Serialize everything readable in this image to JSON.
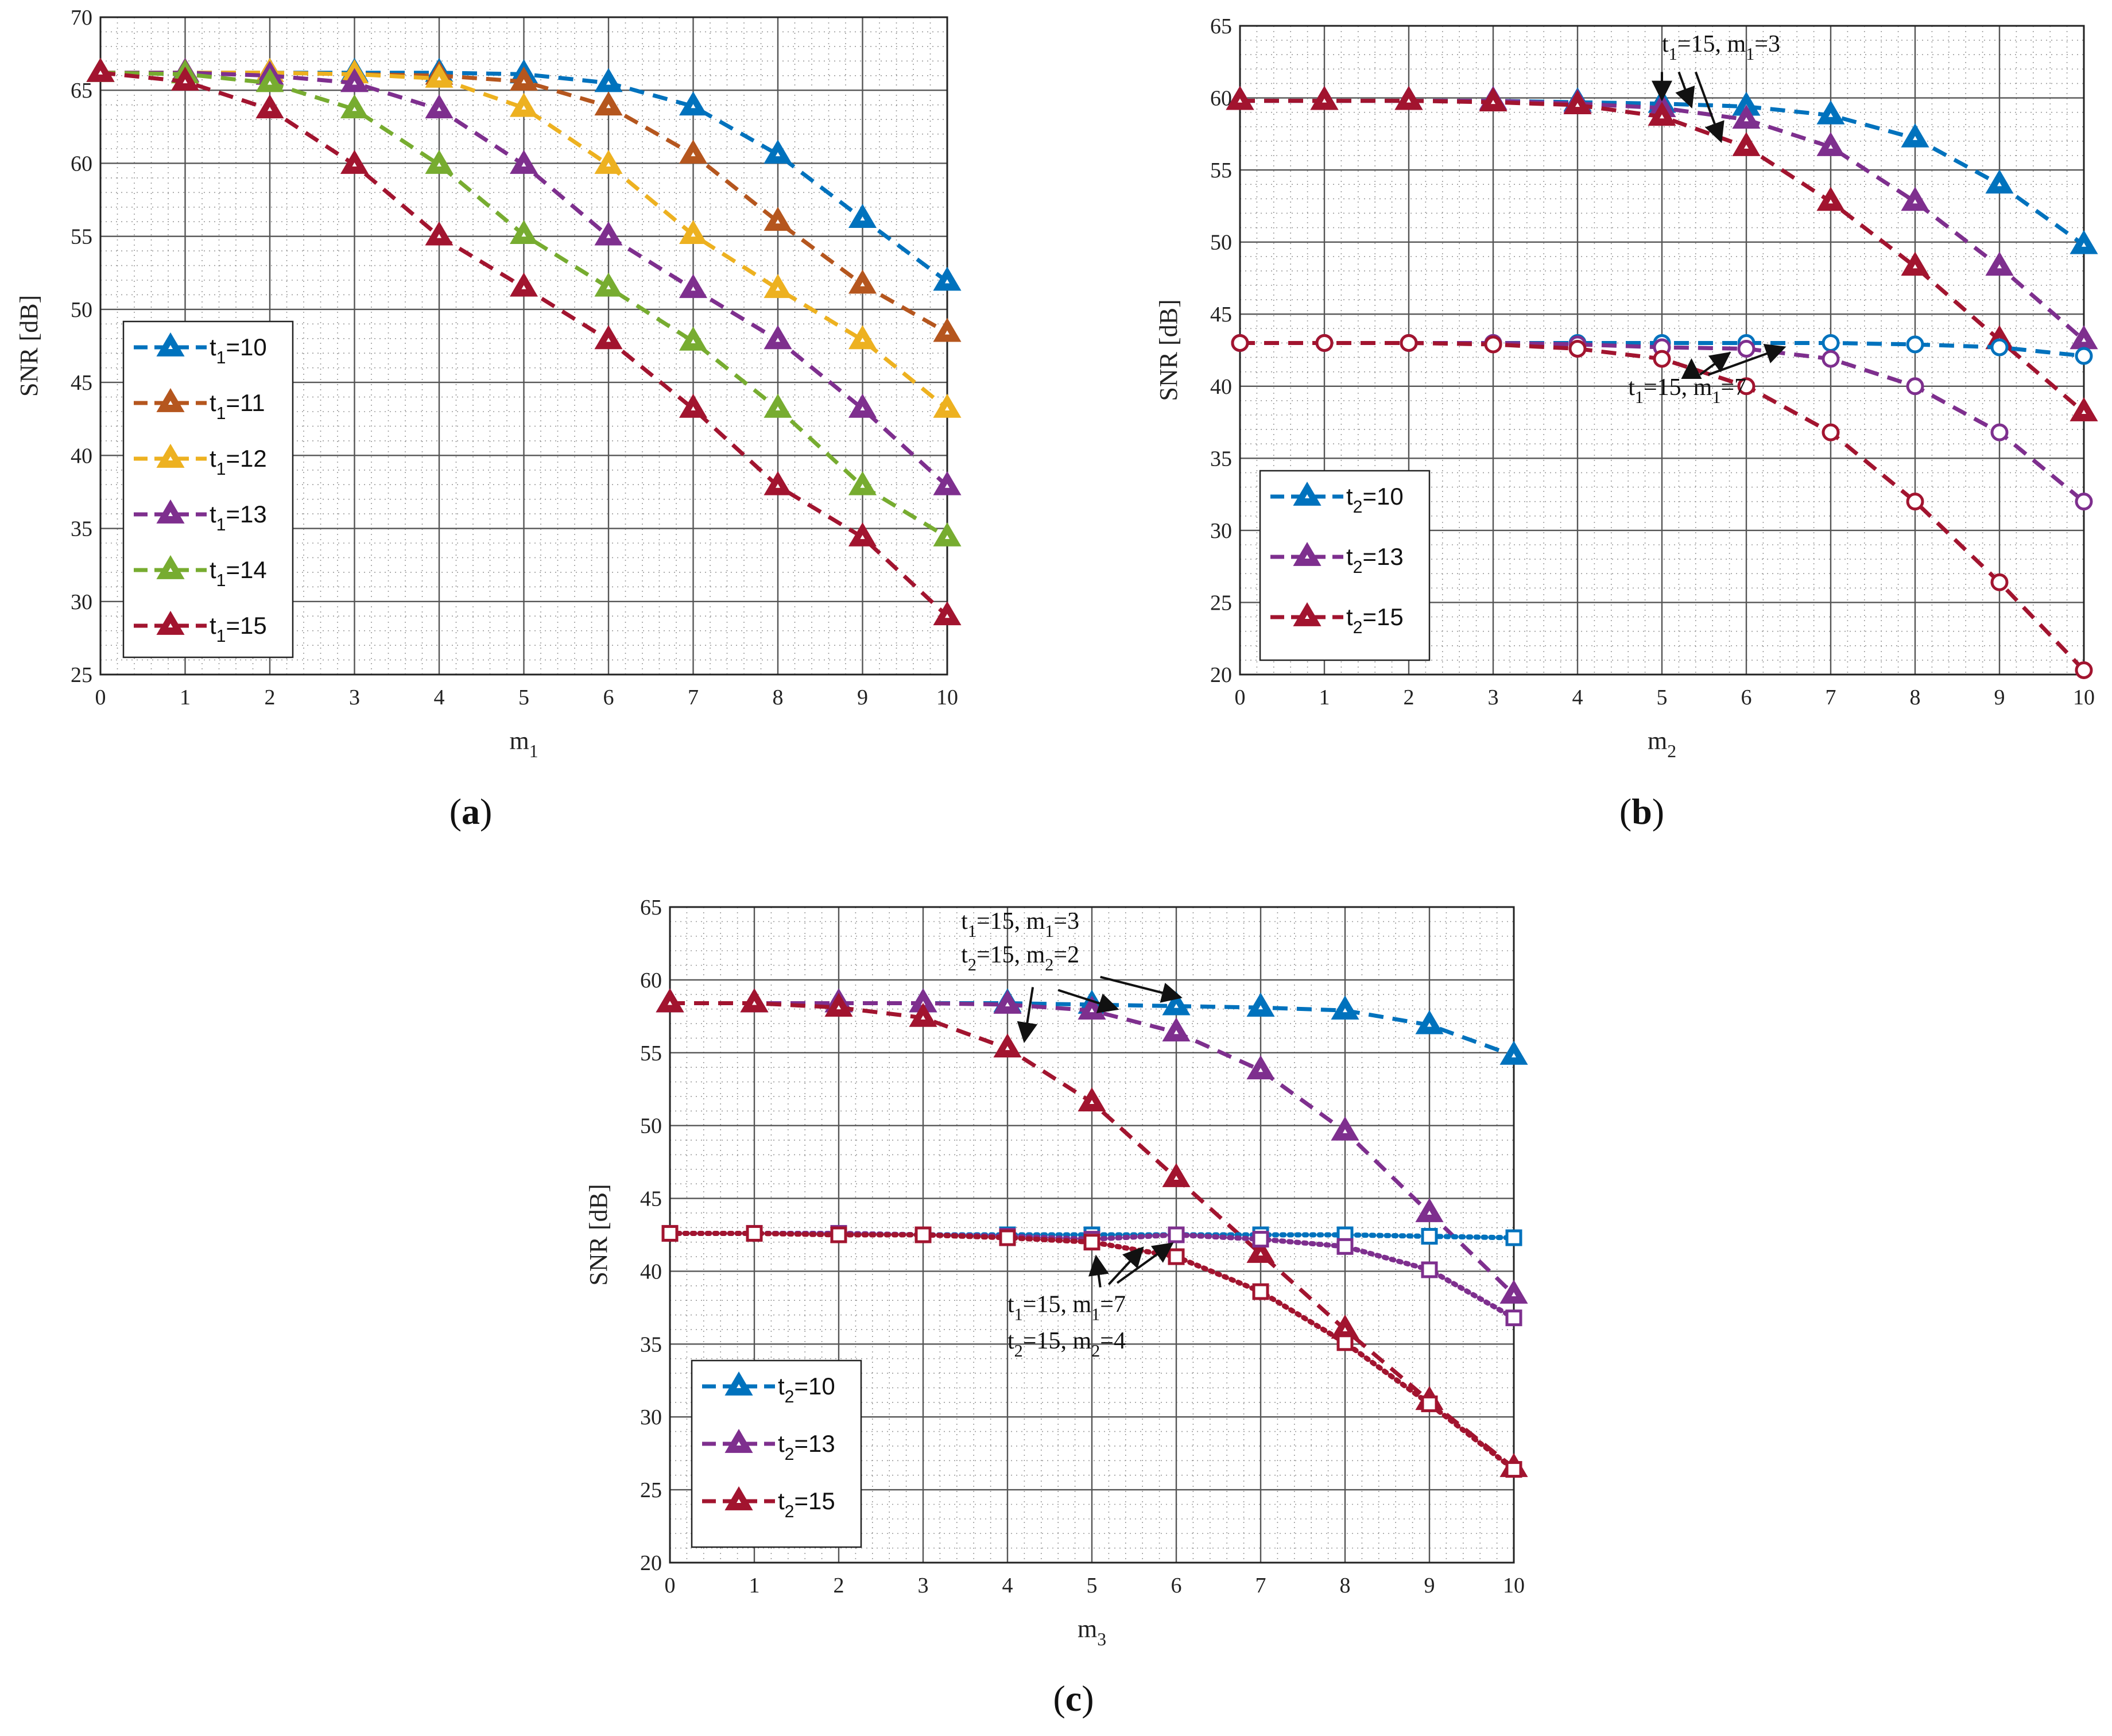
{
  "colors": {
    "blue": "#0072BD",
    "brown": "#B5561E",
    "yellow": "#EDB120",
    "purple": "#7E2F8E",
    "green": "#77AC30",
    "red": "#A2142F"
  },
  "chart_data": [
    {
      "type": "line",
      "panel_label": "(a)",
      "xlabel": "m",
      "xlabel_sub": "1",
      "ylabel": "SNR [dB]",
      "xlim": [
        0,
        10
      ],
      "ylim": [
        25,
        70
      ],
      "xticks": [
        "0",
        "1",
        "2",
        "3",
        "4",
        "5",
        "6",
        "7",
        "8",
        "9",
        "10"
      ],
      "yticks": [
        "25",
        "30",
        "35",
        "40",
        "45",
        "50",
        "55",
        "60",
        "65",
        "70"
      ],
      "legend_position": "lower-left",
      "x": [
        0,
        1,
        2,
        3,
        4,
        5,
        6,
        7,
        8,
        9,
        10
      ],
      "series": [
        {
          "name": "t1=10",
          "label_base": "t",
          "label_sub": "1",
          "label_rest": "=10",
          "color": "blue",
          "style": "dashed",
          "marker": "triangle",
          "values": [
            66.2,
            66.2,
            66.2,
            66.2,
            66.2,
            66.1,
            65.5,
            63.9,
            60.6,
            56.2,
            51.9
          ]
        },
        {
          "name": "t1=11",
          "label_base": "t",
          "label_sub": "1",
          "label_rest": "=11",
          "color": "brown",
          "style": "dashed",
          "marker": "triangle",
          "values": [
            66.2,
            66.2,
            66.2,
            66.1,
            66.0,
            65.6,
            63.9,
            60.6,
            56.0,
            51.7,
            48.4
          ]
        },
        {
          "name": "t1=12",
          "label_base": "t",
          "label_sub": "1",
          "label_rest": "=12",
          "color": "yellow",
          "style": "dashed",
          "marker": "triangle",
          "values": [
            66.2,
            66.2,
            66.2,
            66.1,
            65.8,
            63.8,
            59.9,
            55.1,
            51.4,
            47.9,
            43.2
          ]
        },
        {
          "name": "t1=13",
          "label_base": "t",
          "label_sub": "1",
          "label_rest": "=13",
          "color": "purple",
          "style": "dashed",
          "marker": "triangle",
          "values": [
            66.2,
            66.2,
            66.0,
            65.5,
            63.7,
            59.9,
            55.0,
            51.4,
            47.9,
            43.2,
            37.9
          ]
        },
        {
          "name": "t1=14",
          "label_base": "t",
          "label_sub": "1",
          "label_rest": "=14",
          "color": "green",
          "style": "dashed",
          "marker": "triangle",
          "values": [
            66.2,
            66.1,
            65.5,
            63.7,
            59.9,
            55.1,
            51.5,
            47.8,
            43.2,
            37.9,
            34.4
          ]
        },
        {
          "name": "t1=15",
          "label_base": "t",
          "label_sub": "1",
          "label_rest": "=15",
          "color": "red",
          "style": "dashed",
          "marker": "triangle",
          "values": [
            66.2,
            65.6,
            63.7,
            59.9,
            55.0,
            51.5,
            47.9,
            43.2,
            37.9,
            34.4,
            29.0
          ]
        }
      ],
      "annotations": []
    },
    {
      "type": "line",
      "panel_label": "(b)",
      "xlabel": "m",
      "xlabel_sub": "2",
      "ylabel": "SNR [dB]",
      "xlim": [
        0,
        10
      ],
      "ylim": [
        20,
        65
      ],
      "xticks": [
        "0",
        "1",
        "2",
        "3",
        "4",
        "5",
        "6",
        "7",
        "8",
        "9",
        "10"
      ],
      "yticks": [
        "20",
        "25",
        "30",
        "35",
        "40",
        "45",
        "50",
        "55",
        "60",
        "65"
      ],
      "legend_position": "lower-left",
      "x": [
        0,
        1,
        2,
        3,
        4,
        5,
        6,
        7,
        8,
        9,
        10
      ],
      "series": [
        {
          "name": "t2=10",
          "label_base": "t",
          "label_sub": "2",
          "label_rest": "=10",
          "color": "blue",
          "style": "dashed",
          "marker": "triangle",
          "values": [
            59.8,
            59.8,
            59.8,
            59.8,
            59.7,
            59.6,
            59.4,
            58.8,
            57.2,
            54.0,
            49.8
          ],
          "in_legend": true
        },
        {
          "name": "t2=13",
          "label_base": "t",
          "label_sub": "2",
          "label_rest": "=13",
          "color": "purple",
          "style": "dashed",
          "marker": "triangle",
          "values": [
            59.8,
            59.8,
            59.8,
            59.8,
            59.6,
            59.3,
            58.5,
            56.6,
            52.8,
            48.3,
            43.2
          ],
          "in_legend": true
        },
        {
          "name": "t2=15",
          "label_base": "t",
          "label_sub": "2",
          "label_rest": "=15",
          "color": "red",
          "style": "dashed",
          "marker": "triangle",
          "values": [
            59.8,
            59.8,
            59.8,
            59.7,
            59.5,
            58.7,
            56.6,
            52.8,
            48.3,
            43.2,
            38.2
          ],
          "in_legend": true
        },
        {
          "name": "t2=10 (m1=7)",
          "color": "blue",
          "style": "dashed",
          "marker": "circle",
          "values": [
            43.0,
            43.0,
            43.0,
            43.0,
            43.0,
            43.0,
            43.0,
            43.0,
            42.9,
            42.7,
            42.1
          ],
          "in_legend": false
        },
        {
          "name": "t2=13 (m1=7)",
          "color": "purple",
          "style": "dashed",
          "marker": "circle",
          "values": [
            43.0,
            43.0,
            43.0,
            43.0,
            42.9,
            42.7,
            42.6,
            41.9,
            40.0,
            36.8,
            32.0
          ],
          "in_legend": false
        },
        {
          "name": "t2=15 (m1=7)",
          "color": "red",
          "style": "dashed",
          "marker": "circle",
          "values": [
            43.0,
            43.0,
            43.0,
            42.9,
            42.6,
            41.9,
            40.0,
            36.8,
            32.0,
            26.4,
            20.3
          ],
          "in_legend": false
        }
      ],
      "annotations": [
        {
          "text_base": "t",
          "text_sub": "1",
          "text_rest": "=15, m",
          "text_sub2": "1",
          "text_rest2": "=3",
          "tx": 5.0,
          "ty": 63.2,
          "arrows": [
            {
              "from": [
                5.0,
                61.8
              ],
              "to": [
                5.0,
                59.9
              ]
            },
            {
              "from": [
                5.2,
                61.8
              ],
              "to": [
                5.35,
                59.4
              ]
            },
            {
              "from": [
                5.4,
                61.8
              ],
              "to": [
                5.7,
                57.0
              ]
            }
          ]
        },
        {
          "text_base": "t",
          "text_sub": "1",
          "text_rest": "=15, m",
          "text_sub2": "1",
          "text_rest2": "=7",
          "tx": 4.6,
          "ty": 39.4,
          "arrows": [
            {
              "from": [
                5.35,
                40.8
              ],
              "to": [
                5.35,
                41.8
              ]
            },
            {
              "from": [
                5.45,
                40.8
              ],
              "to": [
                5.8,
                42.3
              ]
            },
            {
              "from": [
                5.55,
                40.8
              ],
              "to": [
                6.45,
                42.7
              ]
            }
          ]
        }
      ]
    },
    {
      "type": "line",
      "panel_label": "(c)",
      "xlabel": "m",
      "xlabel_sub": "3",
      "ylabel": "SNR [dB]",
      "xlim": [
        0,
        10
      ],
      "ylim": [
        20,
        65
      ],
      "xticks": [
        "0",
        "1",
        "2",
        "3",
        "4",
        "5",
        "6",
        "7",
        "8",
        "9",
        "10"
      ],
      "yticks": [
        "20",
        "25",
        "30",
        "35",
        "40",
        "45",
        "50",
        "55",
        "60",
        "65"
      ],
      "legend_position": "lower-left",
      "x": [
        0,
        1,
        2,
        3,
        4,
        5,
        6,
        7,
        8,
        9,
        10
      ],
      "series": [
        {
          "name": "t2=10",
          "label_base": "t",
          "label_sub": "2",
          "label_rest": "=10",
          "color": "blue",
          "style": "dashed",
          "marker": "triangle",
          "values": [
            58.4,
            58.4,
            58.4,
            58.4,
            58.4,
            58.3,
            58.2,
            58.1,
            57.9,
            56.9,
            54.8
          ],
          "in_legend": true
        },
        {
          "name": "t2=13",
          "label_base": "t",
          "label_sub": "2",
          "label_rest": "=13",
          "color": "purple",
          "style": "dashed",
          "marker": "triangle",
          "values": [
            58.4,
            58.4,
            58.4,
            58.4,
            58.3,
            57.9,
            56.4,
            53.8,
            49.6,
            44.0,
            38.4
          ],
          "in_legend": true
        },
        {
          "name": "t2=15",
          "label_base": "t",
          "label_sub": "2",
          "label_rest": "=15",
          "color": "red",
          "style": "dashed",
          "marker": "triangle",
          "values": [
            58.4,
            58.4,
            58.1,
            57.4,
            55.3,
            51.6,
            46.4,
            41.2,
            36.0,
            31.1,
            26.5
          ],
          "in_legend": true
        },
        {
          "name": "t2=10 (m2=4)",
          "color": "blue",
          "style": "dotted",
          "marker": "square",
          "values": [
            42.6,
            42.6,
            42.6,
            42.5,
            42.5,
            42.5,
            42.5,
            42.5,
            42.5,
            42.4,
            42.3
          ],
          "in_legend": false
        },
        {
          "name": "t2=13 (m2=4)",
          "color": "purple",
          "style": "dotted",
          "marker": "square",
          "values": [
            42.6,
            42.6,
            42.6,
            42.5,
            42.4,
            42.2,
            42.5,
            42.2,
            41.7,
            40.1,
            36.8
          ],
          "in_legend": false
        },
        {
          "name": "t2=15 (m2=4)",
          "color": "red",
          "style": "dotted",
          "marker": "square",
          "values": [
            42.6,
            42.6,
            42.5,
            42.5,
            42.3,
            42.0,
            41.0,
            38.6,
            35.1,
            30.9,
            26.4
          ],
          "in_legend": false
        }
      ],
      "annotations": [
        {
          "text_base": "t",
          "text_sub": "1",
          "text_rest": "=15, m",
          "text_sub2": "1",
          "text_rest2": "=3",
          "tx": 3.45,
          "ty": 63.5
        },
        {
          "text_base": "t",
          "text_sub": "2",
          "text_rest": "=15, m",
          "text_sub2": "2",
          "text_rest2": "=2",
          "tx": 3.45,
          "ty": 61.2,
          "arrows": [
            {
              "from": [
                4.3,
                59.5
              ],
              "to": [
                4.2,
                55.8
              ]
            },
            {
              "from": [
                4.6,
                59.3
              ],
              "to": [
                5.3,
                58.0
              ]
            },
            {
              "from": [
                5.1,
                60.2
              ],
              "to": [
                6.05,
                58.8
              ]
            }
          ]
        },
        {
          "text_base": "t",
          "text_sub": "1",
          "text_rest": "=15, m",
          "text_sub2": "1",
          "text_rest2": "=7",
          "tx": 4.0,
          "ty": 37.2
        },
        {
          "text_base": "t",
          "text_sub": "2",
          "text_rest": "=15, m",
          "text_sub2": "2",
          "text_rest2": "=4",
          "tx": 4.0,
          "ty": 34.7,
          "arrows": [
            {
              "from": [
                5.1,
                38.9
              ],
              "to": [
                5.05,
                41.0
              ]
            },
            {
              "from": [
                5.2,
                39.1
              ],
              "to": [
                5.6,
                41.6
              ]
            },
            {
              "from": [
                5.3,
                39.2
              ],
              "to": [
                5.95,
                41.9
              ]
            }
          ]
        }
      ]
    }
  ]
}
